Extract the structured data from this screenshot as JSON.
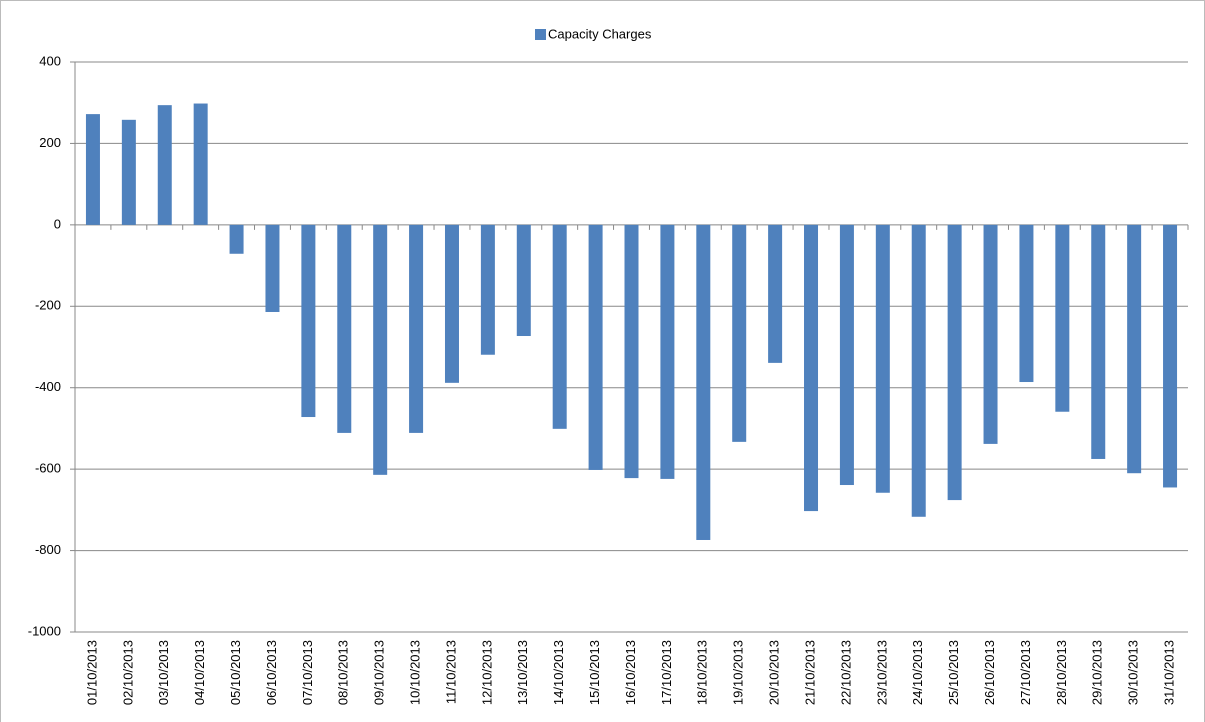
{
  "chart_data": {
    "type": "bar",
    "categories": [
      "01/10/2013",
      "02/10/2013",
      "03/10/2013",
      "04/10/2013",
      "05/10/2013",
      "06/10/2013",
      "07/10/2013",
      "08/10/2013",
      "09/10/2013",
      "10/10/2013",
      "11/10/2013",
      "12/10/2013",
      "13/10/2013",
      "14/10/2013",
      "15/10/2013",
      "16/10/2013",
      "17/10/2013",
      "18/10/2013",
      "19/10/2013",
      "20/10/2013",
      "21/10/2013",
      "22/10/2013",
      "23/10/2013",
      "24/10/2013",
      "25/10/2013",
      "26/10/2013",
      "27/10/2013",
      "28/10/2013",
      "29/10/2013",
      "30/10/2013",
      "31/10/2013"
    ],
    "series": [
      {
        "name": "Capacity Charges",
        "color": "#4f81bd",
        "values": [
          272,
          258,
          294,
          298,
          -71,
          -214,
          -472,
          -511,
          -614,
          -511,
          -388,
          -319,
          -273,
          -501,
          -602,
          -622,
          -624,
          -774,
          -533,
          -339,
          -703,
          -639,
          -658,
          -717,
          -676,
          -538,
          -386,
          -459,
          -575,
          -610,
          -645
        ]
      }
    ],
    "ylim": [
      -1000,
      400
    ],
    "yticks": [
      -1000,
      -800,
      -600,
      -400,
      -200,
      0,
      200,
      400
    ],
    "grid": true,
    "legend": "top"
  }
}
